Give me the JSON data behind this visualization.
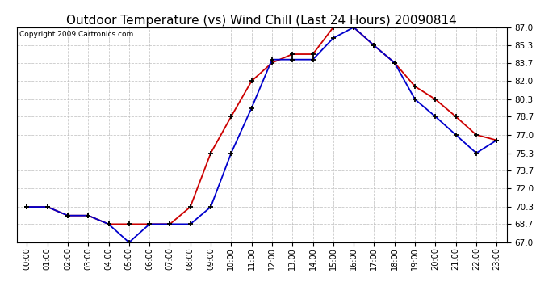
{
  "title": "Outdoor Temperature (vs) Wind Chill (Last 24 Hours) 20090814",
  "copyright": "Copyright 2009 Cartronics.com",
  "hours": [
    "00:00",
    "01:00",
    "02:00",
    "03:00",
    "04:00",
    "05:00",
    "06:00",
    "07:00",
    "08:00",
    "09:00",
    "10:00",
    "11:00",
    "12:00",
    "13:00",
    "14:00",
    "15:00",
    "16:00",
    "17:00",
    "18:00",
    "19:00",
    "20:00",
    "21:00",
    "22:00",
    "23:00"
  ],
  "temp": [
    70.3,
    70.3,
    69.5,
    69.5,
    68.7,
    68.7,
    68.7,
    68.7,
    70.3,
    75.3,
    78.7,
    82.0,
    83.7,
    84.5,
    84.5,
    87.0,
    87.0,
    85.3,
    83.7,
    81.5,
    80.3,
    78.7,
    77.0,
    76.5
  ],
  "wind_chill": [
    70.3,
    70.3,
    69.5,
    69.5,
    68.7,
    67.0,
    68.7,
    68.7,
    68.7,
    70.3,
    75.3,
    79.5,
    84.0,
    84.0,
    84.0,
    86.0,
    87.0,
    85.3,
    83.7,
    80.3,
    78.7,
    77.0,
    75.3,
    76.5
  ],
  "temp_color": "#cc0000",
  "wind_chill_color": "#0000cc",
  "ylim_min": 67.0,
  "ylim_max": 87.0,
  "yticks": [
    67.0,
    68.7,
    70.3,
    72.0,
    73.7,
    75.3,
    77.0,
    78.7,
    80.3,
    82.0,
    83.7,
    85.3,
    87.0
  ],
  "bg_color": "#ffffff",
  "grid_color": "#bbbbbb",
  "title_fontsize": 11,
  "copyright_fontsize": 6.5
}
